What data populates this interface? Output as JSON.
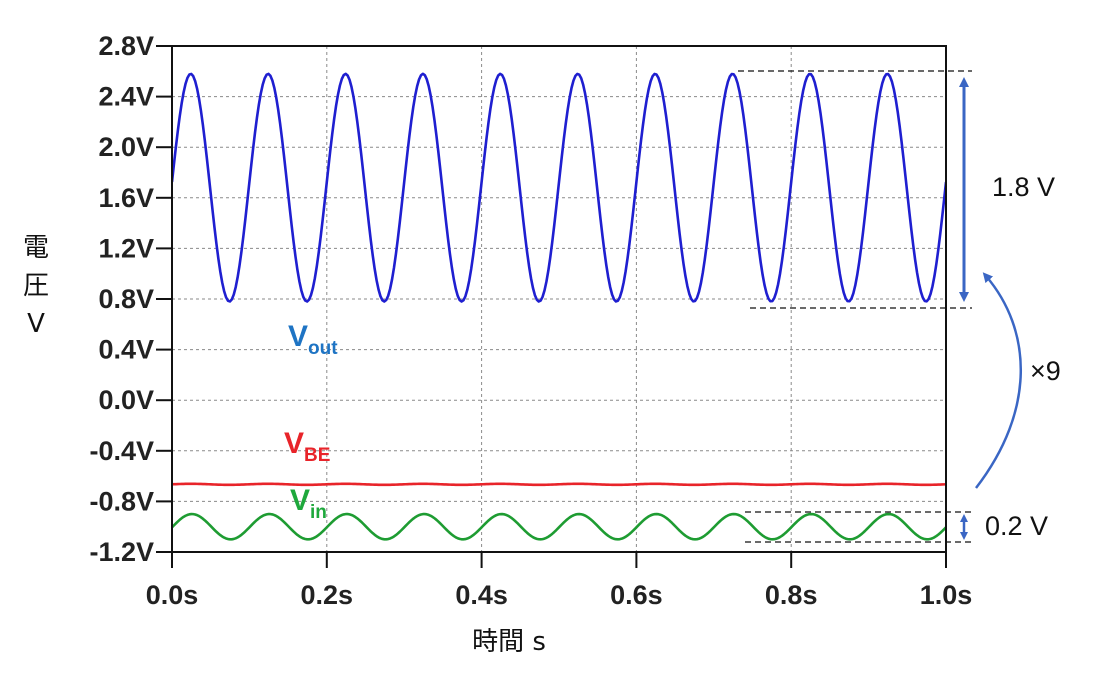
{
  "chart_data": {
    "type": "line",
    "xlabel": "時間 s",
    "ylabel": [
      "電",
      "圧",
      "V"
    ],
    "xlim": [
      0.0,
      1.0
    ],
    "ylim": [
      -1.2,
      2.8
    ],
    "xticks": [
      0.0,
      0.2,
      0.4,
      0.6,
      0.8,
      1.0
    ],
    "xtick_labels": [
      "0.0s",
      "0.2s",
      "0.4s",
      "0.6s",
      "0.8s",
      "1.0s"
    ],
    "yticks": [
      2.8,
      2.4,
      2.0,
      1.6,
      1.2,
      0.8,
      0.4,
      0.0,
      -0.4,
      -0.8,
      -1.2
    ],
    "ytick_labels": [
      "2.8V",
      "2.4V",
      "2.0V",
      "1.6V",
      "1.2V",
      "0.8V",
      "0.4V",
      "0.0V",
      "-0.4V",
      "-0.8V",
      "-1.2V"
    ],
    "grid": true,
    "series": [
      {
        "label_main": "V",
        "label_sub": "out",
        "color": "#1f1fd0",
        "label_color": "#1e74c4",
        "model": "sine",
        "offset": 1.68,
        "amplitude": 0.9,
        "frequency_hz": 10,
        "phase_rad": 0.05,
        "samples": 401,
        "x": [
          0.0,
          0.025,
          0.075,
          0.1,
          0.125,
          0.175,
          0.2,
          1.0
        ],
        "y": [
          1.68,
          2.58,
          0.76,
          1.68,
          2.58,
          0.76,
          1.68,
          1.68
        ]
      },
      {
        "label_main": "V",
        "label_sub": "BE",
        "color": "#e8242a",
        "label_color": "#e8242a",
        "model": "sine",
        "offset": -0.665,
        "amplitude": 0.004,
        "frequency_hz": 10,
        "phase_rad": 0.05,
        "samples": 401,
        "x": [
          0.0,
          1.0
        ],
        "y": [
          -0.665,
          -0.665
        ]
      },
      {
        "label_main": "V",
        "label_sub": "in",
        "color": "#1e9c32",
        "label_color": "#1ea83c",
        "model": "sine",
        "offset": -1.0,
        "amplitude": 0.1,
        "frequency_hz": 10,
        "phase_rad": -0.05,
        "samples": 401,
        "x": [
          0.0,
          0.025,
          0.075,
          0.1,
          0.125,
          0.175,
          1.0
        ],
        "y": [
          -1.0,
          -0.9,
          -1.1,
          -1.0,
          -0.9,
          -1.1,
          -1.0
        ]
      }
    ],
    "annotations": {
      "out_swing": "1.8 V",
      "in_swing": "0.2 V",
      "gain": "×9"
    }
  }
}
